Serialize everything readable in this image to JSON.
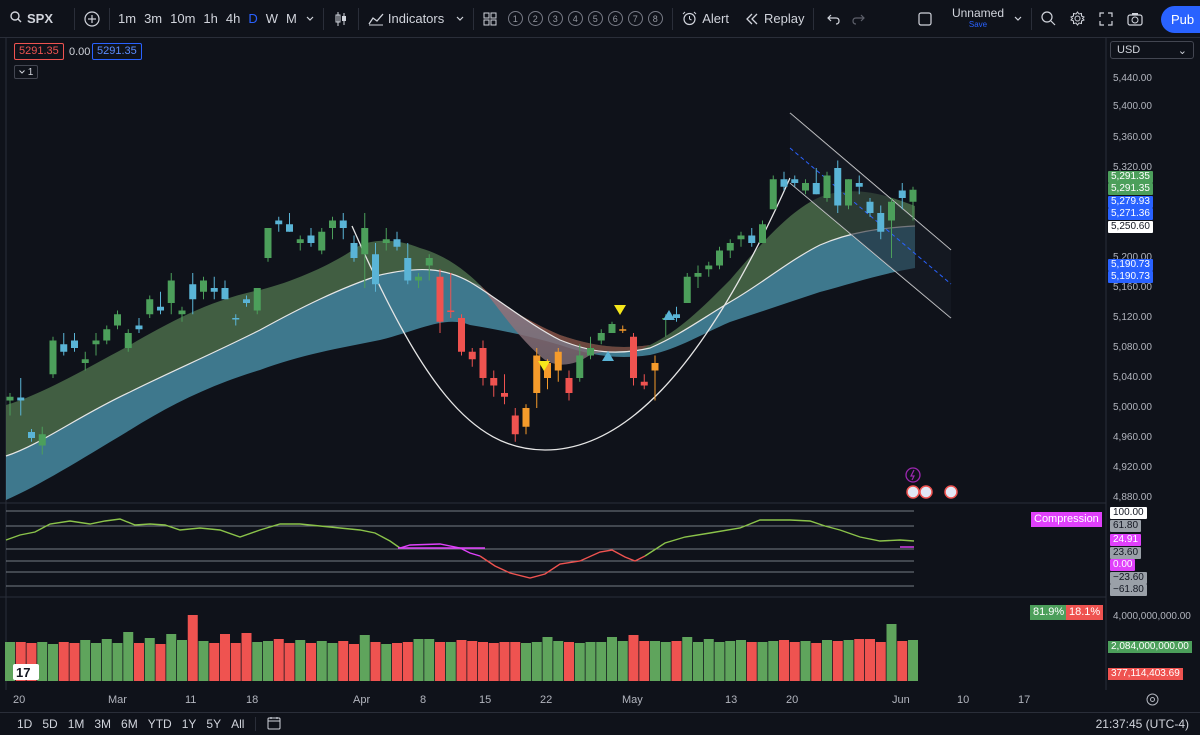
{
  "toolbar": {
    "symbol": "SPX",
    "timeframes": [
      "1m",
      "3m",
      "10m",
      "1h",
      "4h",
      "D",
      "W",
      "M"
    ],
    "active_timeframe": "D",
    "indicators_label": "Indicators",
    "templates": [
      "1",
      "2",
      "3",
      "4",
      "5",
      "6",
      "7",
      "8"
    ],
    "alert_label": "Alert",
    "replay_label": "Replay",
    "layout_name": "Unnamed",
    "layout_save": "Save",
    "publish_label": "Pub"
  },
  "legend": {
    "sell_price": "5291.35",
    "spread": "0.00",
    "buy_price": "5291.35",
    "collapse_count": "1"
  },
  "currency": "USD",
  "price_axis": [
    "5,440.00",
    "5,400.00",
    "5,360.00",
    "5,320.00",
    "5,200.00",
    "5,160.00",
    "5,120.00",
    "5,080.00",
    "5,040.00",
    "5,000.00",
    "4,960.00",
    "4,920.00",
    "4,880.00"
  ],
  "price_tags": [
    {
      "label": "5,291.35",
      "color": "#4c9f5b"
    },
    {
      "label": "5,291.35",
      "color": "#4c9f5b"
    },
    {
      "label": "5,279.93",
      "color": "#2962ff"
    },
    {
      "label": "5,271.36",
      "color": "#2962ff"
    },
    {
      "label": "5,250.60",
      "color": "#ffffff"
    },
    {
      "label": "5,190.73",
      "color": "#2962ff"
    },
    {
      "label": "5,190.73",
      "color": "#2962ff"
    }
  ],
  "oscillator": {
    "title": "Compression",
    "levels": [
      "100.00",
      "61.80",
      "24.91",
      "23.60",
      "0.00",
      "−23.60",
      "−61.80"
    ]
  },
  "volume": {
    "buy_pct": "81.9%",
    "sell_pct": "18.1%",
    "axis": [
      "4,000,000,000.00"
    ],
    "tags": [
      "2,084,000,000.00",
      "377,114,403.69"
    ]
  },
  "dates": [
    "20",
    "Mar",
    "11",
    "18",
    "Apr",
    "8",
    "15",
    "22",
    "May",
    "13",
    "20",
    "Jun",
    "10",
    "17"
  ],
  "bottom": {
    "ranges": [
      "1D",
      "5D",
      "1M",
      "3M",
      "6M",
      "YTD",
      "1Y",
      "5Y",
      "All"
    ],
    "clock": "21:37:45 (UTC-4)"
  },
  "colors": {
    "up": "#4c9f5b",
    "down": "#ef5350",
    "cyan": "#5ab4d6",
    "orange": "#f59b2b",
    "magenta": "#e040fb",
    "accent": "#2962ff"
  },
  "chart_data": {
    "type": "candlestick",
    "candles": [
      {
        "o": 5010,
        "h": 5020,
        "l": 4990,
        "c": 5015
      },
      {
        "o": 5014,
        "h": 5040,
        "l": 4990,
        "c": 5010
      },
      {
        "o": 4968,
        "h": 4972,
        "l": 4955,
        "c": 4960
      },
      {
        "o": 4950,
        "h": 4975,
        "l": 4938,
        "c": 4965
      },
      {
        "o": 5045,
        "h": 5095,
        "l": 5040,
        "c": 5090
      },
      {
        "o": 5085,
        "h": 5100,
        "l": 5070,
        "c": 5075
      },
      {
        "o": 5090,
        "h": 5100,
        "l": 5075,
        "c": 5080
      },
      {
        "o": 5060,
        "h": 5075,
        "l": 5050,
        "c": 5065
      },
      {
        "o": 5085,
        "h": 5100,
        "l": 5070,
        "c": 5090
      },
      {
        "o": 5090,
        "h": 5110,
        "l": 5085,
        "c": 5105
      },
      {
        "o": 5110,
        "h": 5130,
        "l": 5105,
        "c": 5125
      },
      {
        "o": 5080,
        "h": 5105,
        "l": 5075,
        "c": 5100
      },
      {
        "o": 5110,
        "h": 5120,
        "l": 5100,
        "c": 5105
      },
      {
        "o": 5125,
        "h": 5150,
        "l": 5120,
        "c": 5145
      },
      {
        "o": 5135,
        "h": 5155,
        "l": 5125,
        "c": 5130
      },
      {
        "o": 5140,
        "h": 5180,
        "l": 5125,
        "c": 5170
      },
      {
        "o": 5125,
        "h": 5135,
        "l": 5115,
        "c": 5130
      },
      {
        "o": 5165,
        "h": 5180,
        "l": 5125,
        "c": 5145
      },
      {
        "o": 5155,
        "h": 5175,
        "l": 5145,
        "c": 5170
      },
      {
        "o": 5160,
        "h": 5175,
        "l": 5145,
        "c": 5155
      },
      {
        "o": 5160,
        "h": 5170,
        "l": 5145,
        "c": 5145
      },
      {
        "o": 5120,
        "h": 5125,
        "l": 5110,
        "c": 5118
      },
      {
        "o": 5145,
        "h": 5150,
        "l": 5135,
        "c": 5140
      },
      {
        "o": 5130,
        "h": 5160,
        "l": 5125,
        "c": 5160
      },
      {
        "o": 5200,
        "h": 5240,
        "l": 5195,
        "c": 5240
      },
      {
        "o": 5250,
        "h": 5255,
        "l": 5235,
        "c": 5245
      },
      {
        "o": 5245,
        "h": 5260,
        "l": 5235,
        "c": 5235
      },
      {
        "o": 5220,
        "h": 5230,
        "l": 5210,
        "c": 5225
      },
      {
        "o": 5230,
        "h": 5240,
        "l": 5215,
        "c": 5220
      },
      {
        "o": 5210,
        "h": 5240,
        "l": 5205,
        "c": 5235
      },
      {
        "o": 5240,
        "h": 5255,
        "l": 5225,
        "c": 5250
      },
      {
        "o": 5250,
        "h": 5260,
        "l": 5225,
        "c": 5240
      },
      {
        "o": 5220,
        "h": 5230,
        "l": 5195,
        "c": 5200
      },
      {
        "o": 5205,
        "h": 5260,
        "l": 5160,
        "c": 5240
      },
      {
        "o": 5205,
        "h": 5220,
        "l": 5155,
        "c": 5165
      },
      {
        "o": 5220,
        "h": 5240,
        "l": 5210,
        "c": 5225
      },
      {
        "o": 5225,
        "h": 5235,
        "l": 5210,
        "c": 5215
      },
      {
        "o": 5200,
        "h": 5220,
        "l": 5165,
        "c": 5170
      },
      {
        "o": 5170,
        "h": 5180,
        "l": 5160,
        "c": 5175
      },
      {
        "o": 5190,
        "h": 5205,
        "l": 5170,
        "c": 5200
      },
      {
        "o": 5175,
        "h": 5185,
        "l": 5100,
        "c": 5115
      },
      {
        "o": 5130,
        "h": 5180,
        "l": 5120,
        "c": 5130
      },
      {
        "o": 5120,
        "h": 5125,
        "l": 5070,
        "c": 5075
      },
      {
        "o": 5075,
        "h": 5080,
        "l": 5055,
        "c": 5065
      },
      {
        "o": 5080,
        "h": 5090,
        "l": 5030,
        "c": 5040
      },
      {
        "o": 5040,
        "h": 5050,
        "l": 5015,
        "c": 5030
      },
      {
        "o": 5020,
        "h": 5045,
        "l": 5005,
        "c": 5015
      },
      {
        "o": 4990,
        "h": 5000,
        "l": 4955,
        "c": 4965
      },
      {
        "o": 4975,
        "h": 5005,
        "l": 4965,
        "c": 5000
      },
      {
        "o": 5020,
        "h": 5080,
        "l": 5000,
        "c": 5070
      },
      {
        "o": 5040,
        "h": 5065,
        "l": 5025,
        "c": 5060
      },
      {
        "o": 5050,
        "h": 5080,
        "l": 5035,
        "c": 5075
      },
      {
        "o": 5040,
        "h": 5050,
        "l": 5010,
        "c": 5020
      },
      {
        "o": 5040,
        "h": 5085,
        "l": 5035,
        "c": 5070
      },
      {
        "o": 5070,
        "h": 5095,
        "l": 5065,
        "c": 5080
      },
      {
        "o": 5090,
        "h": 5105,
        "l": 5085,
        "c": 5100
      },
      {
        "o": 5100,
        "h": 5115,
        "l": 5100,
        "c": 5112
      },
      {
        "o": 5105,
        "h": 5110,
        "l": 5100,
        "c": 5105
      },
      {
        "o": 5095,
        "h": 5100,
        "l": 5030,
        "c": 5040
      },
      {
        "o": 5035,
        "h": 5045,
        "l": 5025,
        "c": 5030
      },
      {
        "o": 5050,
        "h": 5070,
        "l": 5010,
        "c": 5060
      },
      {
        "o": 5120,
        "h": 5125,
        "l": 5095,
        "c": 5120
      },
      {
        "o": 5125,
        "h": 5135,
        "l": 5115,
        "c": 5120
      },
      {
        "o": 5140,
        "h": 5180,
        "l": 5140,
        "c": 5175
      },
      {
        "o": 5175,
        "h": 5190,
        "l": 5160,
        "c": 5180
      },
      {
        "o": 5185,
        "h": 5195,
        "l": 5175,
        "c": 5190
      },
      {
        "o": 5190,
        "h": 5215,
        "l": 5185,
        "c": 5210
      },
      {
        "o": 5210,
        "h": 5225,
        "l": 5200,
        "c": 5220
      },
      {
        "o": 5225,
        "h": 5235,
        "l": 5215,
        "c": 5230
      },
      {
        "o": 5230,
        "h": 5240,
        "l": 5215,
        "c": 5220
      },
      {
        "o": 5220,
        "h": 5250,
        "l": 5220,
        "c": 5245
      },
      {
        "o": 5265,
        "h": 5310,
        "l": 5265,
        "c": 5305
      },
      {
        "o": 5305,
        "h": 5315,
        "l": 5290,
        "c": 5295
      },
      {
        "o": 5305,
        "h": 5310,
        "l": 5295,
        "c": 5300
      },
      {
        "o": 5290,
        "h": 5305,
        "l": 5285,
        "c": 5300
      },
      {
        "o": 5300,
        "h": 5320,
        "l": 5285,
        "c": 5285
      },
      {
        "o": 5280,
        "h": 5315,
        "l": 5275,
        "c": 5310
      },
      {
        "o": 5320,
        "h": 5330,
        "l": 5260,
        "c": 5270
      },
      {
        "o": 5270,
        "h": 5305,
        "l": 5265,
        "c": 5305
      },
      {
        "o": 5300,
        "h": 5310,
        "l": 5285,
        "c": 5295
      },
      {
        "o": 5275,
        "h": 5280,
        "l": 5255,
        "c": 5260
      },
      {
        "o": 5260,
        "h": 5270,
        "l": 5225,
        "c": 5235
      },
      {
        "o": 5250,
        "h": 5280,
        "l": 5200,
        "c": 5275
      },
      {
        "o": 5290,
        "h": 5300,
        "l": 5265,
        "c": 5280
      },
      {
        "o": 5275,
        "h": 5295,
        "l": 5250,
        "c": 5291
      }
    ],
    "volume": [
      1950,
      1950,
      1900,
      1950,
      1850,
      1950,
      1900,
      2050,
      1900,
      2100,
      1900,
      2450,
      1900,
      2150,
      1850,
      2350,
      2050,
      3300,
      2000,
      1900,
      2350,
      1900,
      2400,
      1950,
      2000,
      2100,
      1900,
      2050,
      1900,
      2000,
      1900,
      2000,
      1850,
      2300,
      1950,
      1850,
      1900,
      1950,
      2100,
      2100,
      1950,
      1950,
      2050,
      2000,
      1950,
      1900,
      1950,
      1950,
      1900,
      1950,
      2200,
      2000,
      1950,
      1900,
      1950,
      1950,
      2200,
      2000,
      2300,
      2000,
      2000,
      1950,
      2000,
      2200,
      1950,
      2100,
      1950,
      2000,
      2050,
      1950,
      1950,
      2000,
      2050,
      1950,
      2000,
      1900,
      2050,
      2000,
      2050,
      2100,
      2100,
      1950,
      2850,
      2000,
      2050
    ]
  }
}
